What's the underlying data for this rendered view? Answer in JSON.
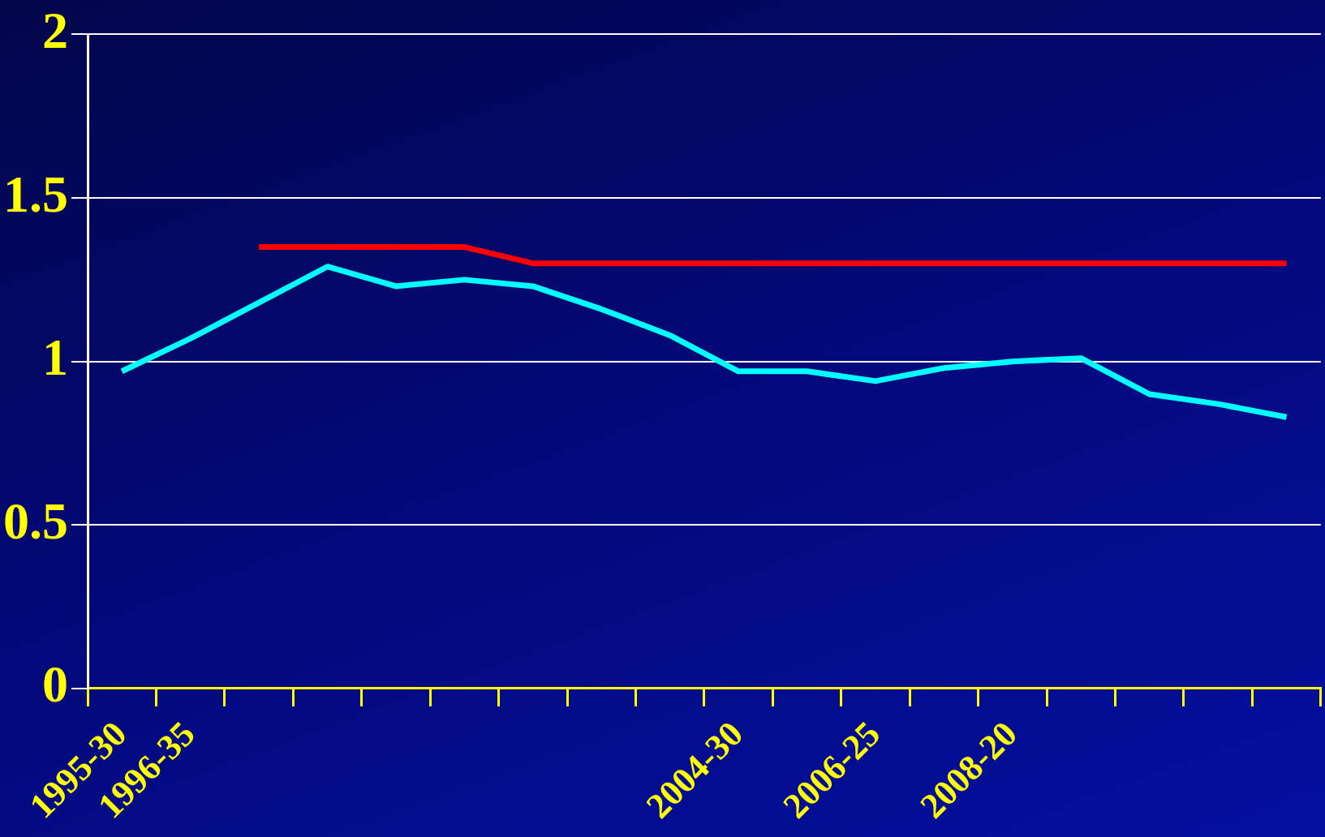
{
  "chart_data": {
    "type": "line",
    "categories": [
      "1995-30",
      "1996-35",
      null,
      null,
      null,
      null,
      null,
      null,
      null,
      "2004-30",
      null,
      "2006-25",
      null,
      "2008-20",
      null,
      null,
      null,
      null
    ],
    "series": [
      {
        "color": "#00ffff",
        "values": [
          0.97,
          1.07,
          1.18,
          1.29,
          1.23,
          1.25,
          1.23,
          1.16,
          1.08,
          0.97,
          0.97,
          0.94,
          0.98,
          1.0,
          1.01,
          0.9,
          0.87,
          0.83
        ]
      },
      {
        "color": "#ff0000",
        "values": [
          null,
          null,
          1.35,
          1.35,
          1.35,
          1.35,
          1.3,
          1.3,
          1.3,
          1.3,
          1.3,
          1.3,
          1.3,
          1.3,
          1.3,
          1.3,
          1.3,
          1.3
        ]
      }
    ],
    "ylim": [
      0,
      2
    ],
    "yticks": [
      0,
      0.5,
      1,
      1.5,
      2
    ],
    "grid": "y",
    "legend": false,
    "marker": "none",
    "line_style": "solid"
  }
}
